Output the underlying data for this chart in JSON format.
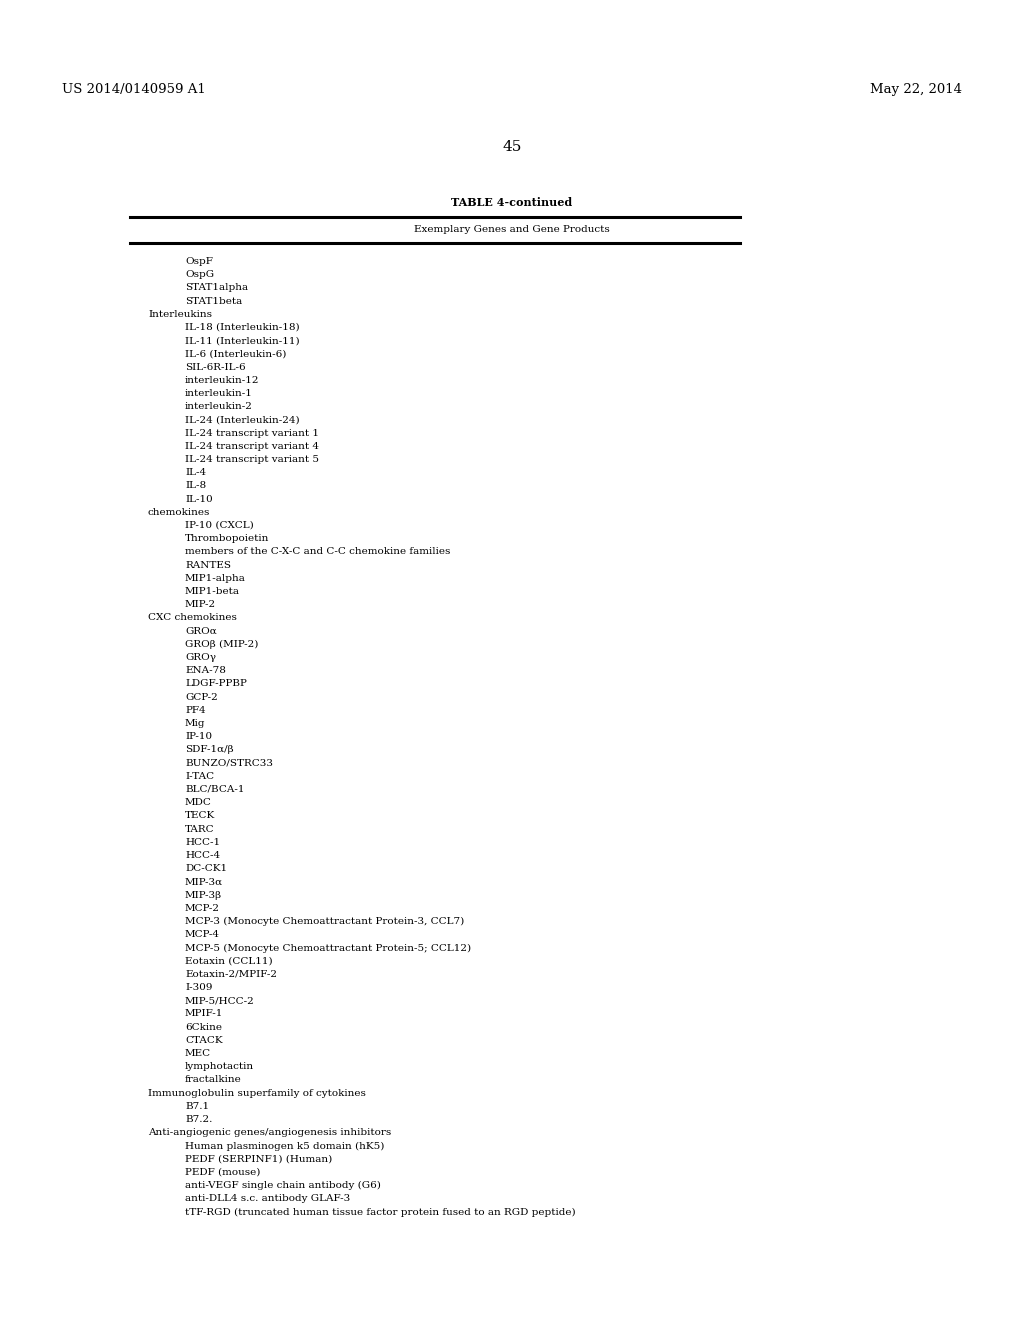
{
  "header_left": "US 2014/0140959 A1",
  "header_right": "May 22, 2014",
  "page_number": "45",
  "table_title": "TABLE 4-continued",
  "table_subtitle": "Exemplary Genes and Gene Products",
  "entries": [
    {
      "text": "OspF",
      "indent": 1
    },
    {
      "text": "OspG",
      "indent": 1
    },
    {
      "text": "STAT1alpha",
      "indent": 1
    },
    {
      "text": "STAT1beta",
      "indent": 1
    },
    {
      "text": "Interleukins",
      "indent": 0
    },
    {
      "text": "IL-18 (Interleukin-18)",
      "indent": 1
    },
    {
      "text": "IL-11 (Interleukin-11)",
      "indent": 1
    },
    {
      "text": "IL-6 (Interleukin-6)",
      "indent": 1
    },
    {
      "text": "SIL-6R-IL-6",
      "indent": 1
    },
    {
      "text": "interleukin-12",
      "indent": 1
    },
    {
      "text": "interleukin-1",
      "indent": 1
    },
    {
      "text": "interleukin-2",
      "indent": 1
    },
    {
      "text": "IL-24 (Interleukin-24)",
      "indent": 1
    },
    {
      "text": "IL-24 transcript variant 1",
      "indent": 1
    },
    {
      "text": "IL-24 transcript variant 4",
      "indent": 1
    },
    {
      "text": "IL-24 transcript variant 5",
      "indent": 1
    },
    {
      "text": "IL-4",
      "indent": 1
    },
    {
      "text": "IL-8",
      "indent": 1
    },
    {
      "text": "IL-10",
      "indent": 1
    },
    {
      "text": "chemokines",
      "indent": 0
    },
    {
      "text": "IP-10 (CXCL)",
      "indent": 1
    },
    {
      "text": "Thrombopoietin",
      "indent": 1
    },
    {
      "text": "members of the C-X-C and C-C chemokine families",
      "indent": 1
    },
    {
      "text": "RANTES",
      "indent": 1
    },
    {
      "text": "MIP1-alpha",
      "indent": 1
    },
    {
      "text": "MIP1-beta",
      "indent": 1
    },
    {
      "text": "MIP-2",
      "indent": 1
    },
    {
      "text": "CXC chemokines",
      "indent": 0
    },
    {
      "text": "GROα",
      "indent": 1
    },
    {
      "text": "GROβ (MIP-2)",
      "indent": 1
    },
    {
      "text": "GROγ",
      "indent": 1
    },
    {
      "text": "ENA-78",
      "indent": 1
    },
    {
      "text": "LDGF-PPBP",
      "indent": 1
    },
    {
      "text": "GCP-2",
      "indent": 1
    },
    {
      "text": "PF4",
      "indent": 1
    },
    {
      "text": "Mig",
      "indent": 1
    },
    {
      "text": "IP-10",
      "indent": 1
    },
    {
      "text": "SDF-1α/β",
      "indent": 1
    },
    {
      "text": "BUNZO/STRC33",
      "indent": 1
    },
    {
      "text": "I-TAC",
      "indent": 1
    },
    {
      "text": "BLC/BCA-1",
      "indent": 1
    },
    {
      "text": "MDC",
      "indent": 1
    },
    {
      "text": "TECK",
      "indent": 1
    },
    {
      "text": "TARC",
      "indent": 1
    },
    {
      "text": "HCC-1",
      "indent": 1
    },
    {
      "text": "HCC-4",
      "indent": 1
    },
    {
      "text": "DC-CK1",
      "indent": 1
    },
    {
      "text": "MIP-3α",
      "indent": 1
    },
    {
      "text": "MIP-3β",
      "indent": 1
    },
    {
      "text": "MCP-2",
      "indent": 1
    },
    {
      "text": "MCP-3 (Monocyte Chemoattractant Protein-3, CCL7)",
      "indent": 1
    },
    {
      "text": "MCP-4",
      "indent": 1
    },
    {
      "text": "MCP-5 (Monocyte Chemoattractant Protein-5; CCL12)",
      "indent": 1
    },
    {
      "text": "Eotaxin (CCL11)",
      "indent": 1
    },
    {
      "text": "Eotaxin-2/MPIF-2",
      "indent": 1
    },
    {
      "text": "I-309",
      "indent": 1
    },
    {
      "text": "MIP-5/HCC-2",
      "indent": 1
    },
    {
      "text": "MPIF-1",
      "indent": 1
    },
    {
      "text": "6Ckine",
      "indent": 1
    },
    {
      "text": "CTACK",
      "indent": 1
    },
    {
      "text": "MEC",
      "indent": 1
    },
    {
      "text": "lymphotactin",
      "indent": 1
    },
    {
      "text": "fractalkine",
      "indent": 1
    },
    {
      "text": "Immunoglobulin superfamily of cytokines",
      "indent": 0
    },
    {
      "text": "B7.1",
      "indent": 1
    },
    {
      "text": "B7.2.",
      "indent": 1
    },
    {
      "text": "Anti-angiogenic genes/angiogenesis inhibitors",
      "indent": 0
    },
    {
      "text": "Human plasminogen k5 domain (hK5)",
      "indent": 1
    },
    {
      "text": "PEDF (SERPINF1) (Human)",
      "indent": 1
    },
    {
      "text": "PEDF (mouse)",
      "indent": 1
    },
    {
      "text": "anti-VEGF single chain antibody (G6)",
      "indent": 1
    },
    {
      "text": "anti-DLL4 s.c. antibody GLAF-3",
      "indent": 1
    },
    {
      "text": "tTF-RGD (truncated human tissue factor protein fused to an RGD peptide)",
      "indent": 1
    }
  ],
  "bg_color": "#ffffff",
  "text_color": "#000000",
  "font_size": 7.5,
  "header_font_size": 9.5,
  "page_num_font_size": 11
}
